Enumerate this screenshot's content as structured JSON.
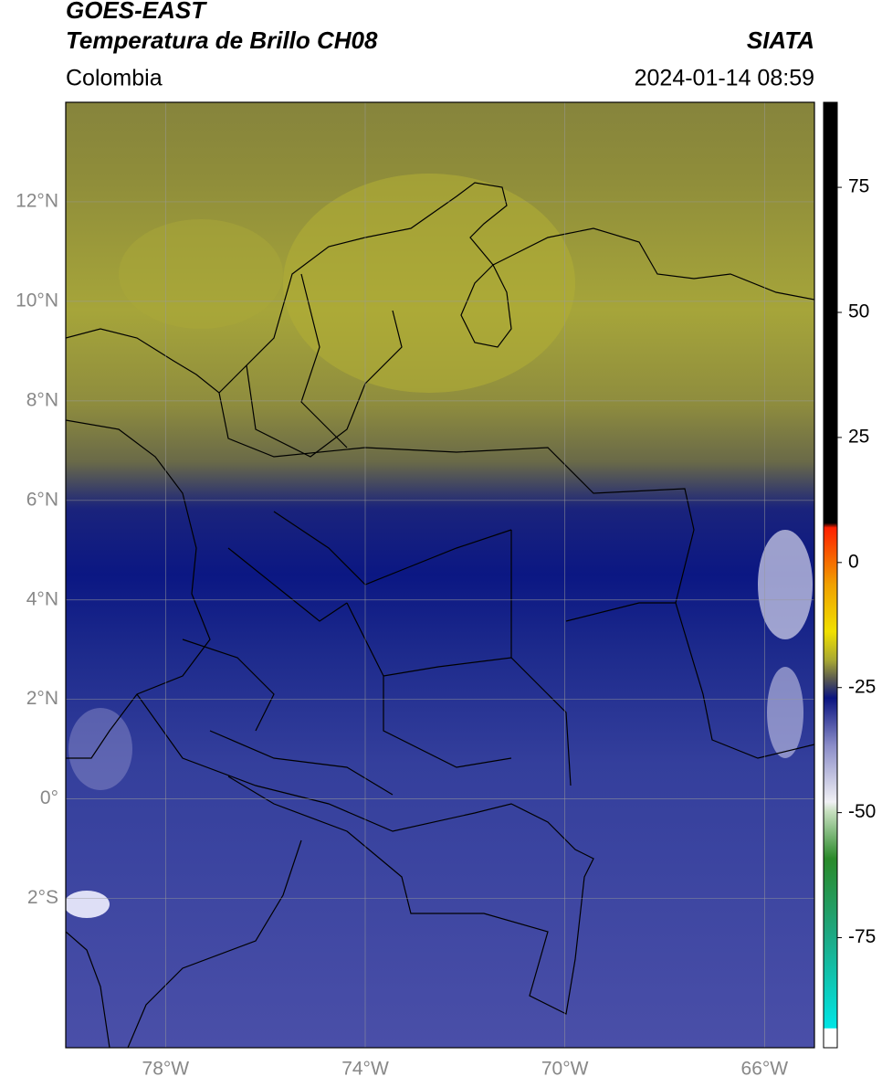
{
  "header": {
    "satellite": "GOES-EAST",
    "product": "Temperatura de Brillo CH08",
    "organization": "SIATA",
    "region": "Colombia",
    "timestamp": "2024-01-14 08:59"
  },
  "map": {
    "lon_range": [
      -80,
      -65
    ],
    "lat_range": [
      -5,
      14
    ],
    "lat_ticks": [
      {
        "value": 12,
        "label": "12°N"
      },
      {
        "value": 10,
        "label": "10°N"
      },
      {
        "value": 8,
        "label": "8°N"
      },
      {
        "value": 6,
        "label": "6°N"
      },
      {
        "value": 4,
        "label": "4°N"
      },
      {
        "value": 2,
        "label": "2°N"
      },
      {
        "value": 0,
        "label": "0°"
      },
      {
        "value": -2,
        "label": "2°S"
      }
    ],
    "lon_ticks": [
      {
        "value": -78,
        "label": "78°W"
      },
      {
        "value": -74,
        "label": "74°W"
      },
      {
        "value": -70,
        "label": "70°W"
      },
      {
        "value": -66,
        "label": "66°W"
      }
    ]
  },
  "colorbar": {
    "range": [
      -97,
      92
    ],
    "ticks": [
      75,
      50,
      25,
      0,
      -25,
      -50,
      -75
    ]
  }
}
